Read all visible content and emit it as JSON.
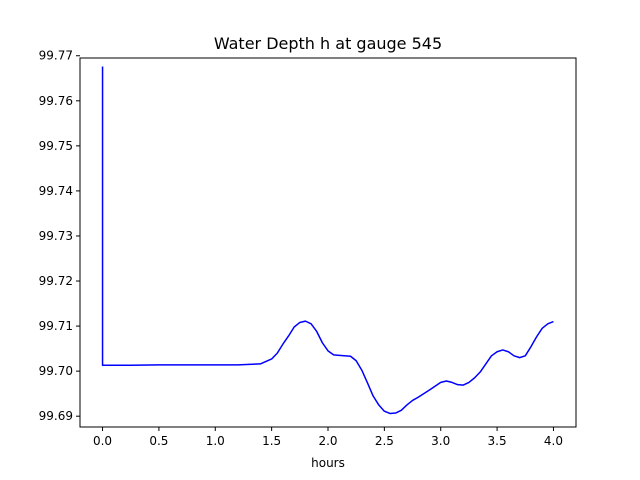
{
  "chart_data": {
    "type": "line",
    "title": "Water Depth h at gauge 545",
    "xlabel": "hours",
    "ylabel": "",
    "xlim": [
      -0.2,
      4.2
    ],
    "ylim": [
      99.6876,
      99.7695
    ],
    "x_ticks": [
      0.0,
      0.5,
      1.0,
      1.5,
      2.0,
      2.5,
      3.0,
      3.5,
      4.0
    ],
    "x_tick_labels": [
      "0.0",
      "0.5",
      "1.0",
      "1.5",
      "2.0",
      "2.5",
      "3.0",
      "3.5",
      "4.0"
    ],
    "y_ticks": [
      99.69,
      99.7,
      99.71,
      99.72,
      99.73,
      99.74,
      99.75,
      99.76,
      99.77
    ],
    "y_tick_labels": [
      "99.69",
      "99.70",
      "99.71",
      "99.72",
      "99.73",
      "99.74",
      "99.75",
      "99.76",
      "99.77"
    ],
    "grid": false,
    "legend": "none",
    "series": [
      {
        "color": "#0000ff",
        "x": [
          0.0,
          0.0,
          0.25,
          0.5,
          0.75,
          1.0,
          1.2,
          1.4,
          1.5,
          1.55,
          1.6,
          1.65,
          1.7,
          1.75,
          1.8,
          1.85,
          1.9,
          1.95,
          2.0,
          2.05,
          2.1,
          2.2,
          2.25,
          2.3,
          2.35,
          2.4,
          2.45,
          2.5,
          2.55,
          2.6,
          2.65,
          2.7,
          2.75,
          2.8,
          2.9,
          3.0,
          3.05,
          3.1,
          3.15,
          3.2,
          3.25,
          3.3,
          3.35,
          3.4,
          3.45,
          3.5,
          3.55,
          3.6,
          3.65,
          3.7,
          3.75,
          3.8,
          3.85,
          3.9,
          3.95,
          4.0
        ],
        "y": [
          99.7676,
          99.7013,
          99.7013,
          99.7014,
          99.7014,
          99.7014,
          99.7014,
          99.7016,
          99.7027,
          99.704,
          99.706,
          99.7078,
          99.7098,
          99.7108,
          99.7111,
          99.7105,
          99.7088,
          99.7063,
          99.7045,
          99.7036,
          99.7035,
          99.7033,
          99.7023,
          99.7002,
          99.6974,
          99.6945,
          99.6925,
          99.6911,
          99.6906,
          99.6907,
          99.6913,
          99.6925,
          99.6935,
          99.6942,
          99.6958,
          99.6975,
          99.6978,
          99.6975,
          99.697,
          99.6969,
          99.6975,
          99.6985,
          99.6998,
          99.7016,
          99.7034,
          99.7043,
          99.7047,
          99.7043,
          99.7034,
          99.703,
          99.7034,
          99.7054,
          99.7076,
          99.7095,
          99.7105,
          99.711
        ]
      }
    ]
  }
}
